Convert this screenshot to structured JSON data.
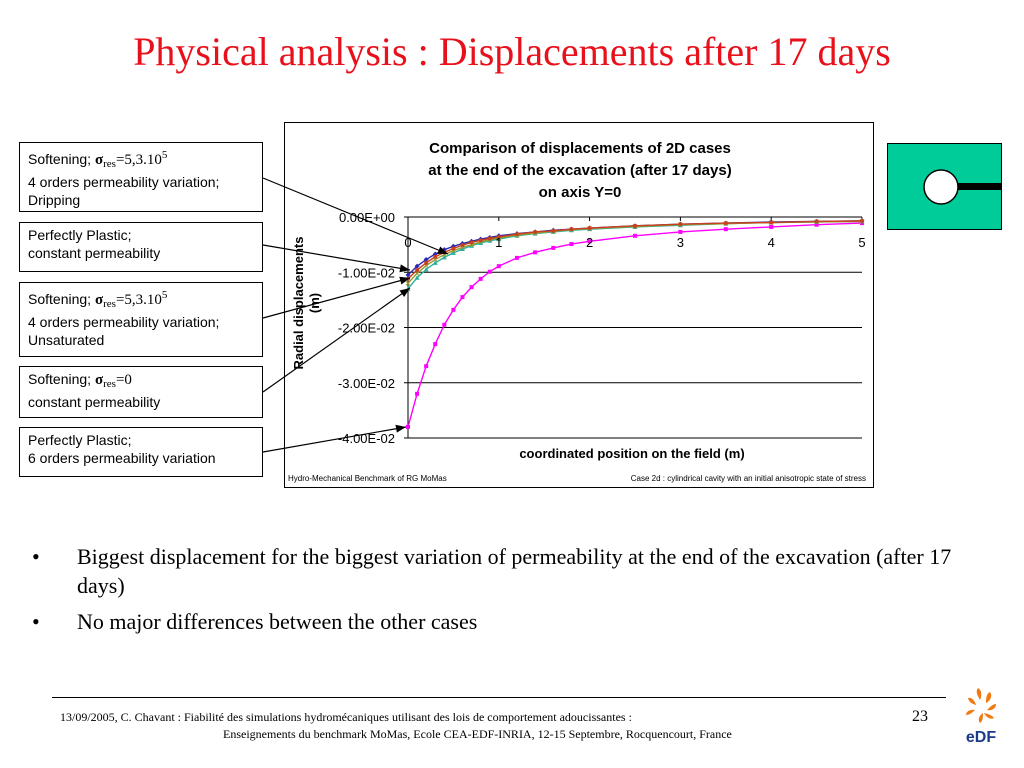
{
  "slide": {
    "title": "Physical analysis : Displacements after 17 days",
    "bullets": [
      "Biggest displacement for the biggest variation of permeability at the end of the excavation (after 17 days)",
      "No major differences between the other cases"
    ],
    "footer_line1": "13/09/2005, C. Chavant : Fiabilité des simulations hydromécaniques utilisant des lois de comportement adoucissantes :",
    "footer_line2": "Enseignements du benchmark MoMas, Ecole CEA-EDF-INRIA, 12-15 Septembre,  Rocquencourt, France",
    "page_number": "23",
    "logo_text": "eDF"
  },
  "legend_labels": [
    {
      "prefix": "Softening;",
      "sigma": "σ",
      "sub": "res",
      "rest": "=5,3.10",
      "sup": "5",
      "line2": "4 orders permeability variation;",
      "line3": "Dripping"
    },
    {
      "line1": "Perfectly Plastic;",
      "line2": "constant permeability"
    },
    {
      "prefix": "Softening;",
      "sigma": "σ",
      "sub": "res",
      "rest": "=5,3.10",
      "sup": "5",
      "line2": "4 orders permeability variation;",
      "line3": "Unsaturated"
    },
    {
      "prefix": "Softening;",
      "sigma": "σ",
      "sub": "res",
      "rest": "=0",
      "sup": "",
      "line2": "constant permeability"
    },
    {
      "line1": "Perfectly Plastic;",
      "line2": "6 orders permeability variation"
    }
  ],
  "chart_data": {
    "type": "line",
    "title_lines": [
      "Comparison of displacements of 2D cases",
      "at the end of the excavation (after 17 days)",
      "on axis Y=0"
    ],
    "xlabel": "coordinated position on the field (m)",
    "ylabel_lines": [
      "Radial displacements",
      "(m)"
    ],
    "xlim": [
      0,
      5
    ],
    "ylim": [
      -0.04,
      0
    ],
    "x_ticks": [
      0,
      1,
      2,
      3,
      4,
      5
    ],
    "x_tick_labels": [
      "0",
      "1",
      "2",
      "3",
      "4",
      "5"
    ],
    "y_ticks": [
      0,
      -0.01,
      -0.02,
      -0.03,
      -0.04
    ],
    "y_tick_labels": [
      "0.00E+00",
      "-1.00E-02",
      "-2.00E-02",
      "-3.00E-02",
      "-4.00E-02"
    ],
    "grid": "horizontal",
    "footnote_left": "Hydro-Mechanical Benchmark of RG MoMas",
    "footnote_right": "Case 2d : cylindrical cavity with an initial anisotropic state of stress",
    "series": [
      {
        "color": "#ff00ff",
        "marker": "square",
        "x": [
          0,
          0.1,
          0.2,
          0.3,
          0.4,
          0.5,
          0.6,
          0.7,
          0.8,
          0.9,
          1.0,
          1.2,
          1.4,
          1.6,
          1.8,
          2.0,
          2.5,
          3.0,
          3.5,
          4.0,
          4.5,
          5.0
        ],
        "y": [
          -0.038,
          -0.032,
          -0.027,
          -0.023,
          -0.0195,
          -0.0168,
          -0.0145,
          -0.0127,
          -0.0112,
          -0.0099,
          -0.0089,
          -0.0074,
          -0.0064,
          -0.0056,
          -0.0049,
          -0.0044,
          -0.0034,
          -0.0027,
          -0.0022,
          -0.0018,
          -0.0014,
          -0.0011
        ]
      },
      {
        "color": "#2a2ab0",
        "marker": "diamond",
        "x": [
          0,
          0.1,
          0.2,
          0.3,
          0.4,
          0.5,
          0.6,
          0.7,
          0.8,
          0.9,
          1.0,
          1.2,
          1.4,
          1.6,
          1.8,
          2.0,
          2.5,
          3.0,
          3.5,
          4.0,
          4.5,
          5.0
        ],
        "y": [
          -0.0105,
          -0.0089,
          -0.0077,
          -0.0067,
          -0.0059,
          -0.0053,
          -0.0048,
          -0.0044,
          -0.004,
          -0.0037,
          -0.0034,
          -0.003,
          -0.0027,
          -0.0024,
          -0.0022,
          -0.002,
          -0.0016,
          -0.0013,
          -0.0011,
          -0.0009,
          -0.0008,
          -0.0007
        ]
      },
      {
        "color": "#2ab0a0",
        "marker": "triangle",
        "x": [
          0,
          0.1,
          0.2,
          0.3,
          0.4,
          0.5,
          0.6,
          0.7,
          0.8,
          0.9,
          1.0,
          1.2,
          1.4,
          1.6,
          1.8,
          2.0,
          2.5,
          3.0,
          3.5,
          4.0,
          4.5,
          5.0
        ],
        "y": [
          -0.013,
          -0.011,
          -0.0095,
          -0.0083,
          -0.0073,
          -0.0065,
          -0.0058,
          -0.0052,
          -0.0047,
          -0.0043,
          -0.004,
          -0.0034,
          -0.003,
          -0.0027,
          -0.0024,
          -0.0022,
          -0.0018,
          -0.0015,
          -0.0012,
          -0.001,
          -0.0009,
          -0.0008
        ]
      },
      {
        "color": "#9a9a30",
        "marker": "cross",
        "x": [
          0,
          0.1,
          0.2,
          0.3,
          0.4,
          0.5,
          0.6,
          0.7,
          0.8,
          0.9,
          1.0,
          1.2,
          1.4,
          1.6,
          1.8,
          2.0,
          2.5,
          3.0,
          3.5,
          4.0,
          4.5,
          5.0
        ],
        "y": [
          -0.012,
          -0.0102,
          -0.0088,
          -0.0077,
          -0.0068,
          -0.0061,
          -0.0055,
          -0.005,
          -0.0045,
          -0.0041,
          -0.0038,
          -0.0033,
          -0.0029,
          -0.0026,
          -0.0023,
          -0.0021,
          -0.0017,
          -0.0014,
          -0.0012,
          -0.001,
          -0.0009,
          -0.0008
        ]
      },
      {
        "color": "#c84020",
        "marker": "circle",
        "x": [
          0,
          0.1,
          0.2,
          0.3,
          0.4,
          0.5,
          0.6,
          0.7,
          0.8,
          0.9,
          1.0,
          1.2,
          1.4,
          1.6,
          1.8,
          2.0,
          2.5,
          3.0,
          3.5,
          4.0,
          4.5,
          5.0
        ],
        "y": [
          -0.0112,
          -0.0096,
          -0.0083,
          -0.0072,
          -0.0064,
          -0.0057,
          -0.0051,
          -0.0046,
          -0.0042,
          -0.0039,
          -0.0036,
          -0.0031,
          -0.0027,
          -0.0025,
          -0.0022,
          -0.002,
          -0.0016,
          -0.0013,
          -0.0011,
          -0.001,
          -0.0008,
          -0.0007
        ]
      }
    ]
  },
  "icon": {
    "name": "cylindrical-cavity-icon",
    "fill": "#00cc99"
  }
}
